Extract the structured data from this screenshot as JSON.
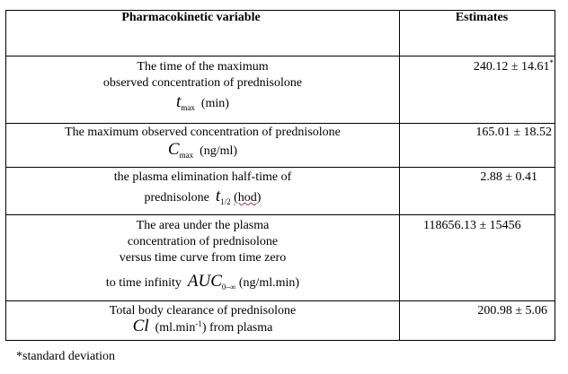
{
  "table": {
    "header": {
      "variable": "Pharmacokinetic variable",
      "estimates": "Estimates"
    },
    "rows": [
      {
        "lines": [
          "The time of the maximum",
          "observed concentration of prednisolone"
        ],
        "symbol": "t",
        "symbol_sub": "max",
        "unit": "(min)",
        "estimate": "240.12 ± 14.61",
        "estimate_mark": "*"
      },
      {
        "lines": [
          "The maximum observed concentration of prednisolone"
        ],
        "symbol": "C",
        "symbol_sub": "max",
        "unit": "(ng/ml)",
        "estimate": "165.01 ± 18.52"
      },
      {
        "lines": [
          "the plasma elimination half-time of"
        ],
        "prefix": "prednisolone",
        "symbol": "t",
        "symbol_sub": "1/2",
        "unit": "(hod)",
        "estimate": "2.88 ± 0.41"
      },
      {
        "lines": [
          "The area under the plasma",
          "concentration of prednisolone",
          "versus time curve from time zero"
        ],
        "prefix": "to time infinity",
        "symbol": "AUC",
        "symbol_sub": "0–∞",
        "unit": "(ng/ml.min)",
        "estimate": "118656.13 ± 15456"
      },
      {
        "lines": [
          "Total body clearance of prednisolone"
        ],
        "symbol": "Cl",
        "unit": "(ml.min",
        "unit_sup": "-1",
        "unit_after": ") from plasma",
        "estimate": "200.98 ± 5.06"
      }
    ]
  },
  "footnote": "*standard deviation"
}
